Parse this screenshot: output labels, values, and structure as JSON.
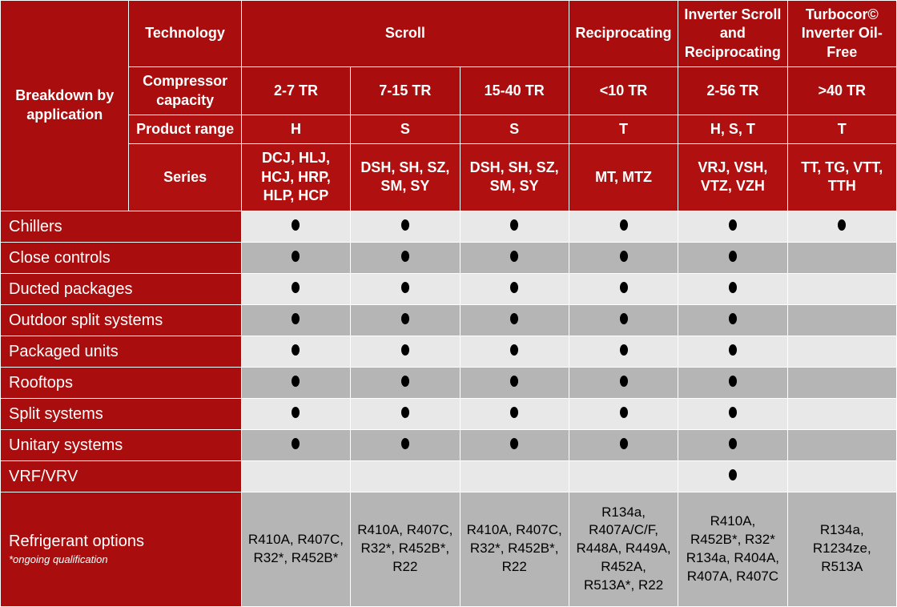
{
  "title_left": "Breakdown by application",
  "header": {
    "row1": {
      "label": "Technology",
      "cells": [
        "Scroll",
        "Reciprocating",
        "Inverter Scroll and Reciprocating",
        "Turbocor© Inverter Oil-Free"
      ]
    },
    "row2": {
      "label": "Compressor capacity",
      "cells": [
        "2-7 TR",
        "7-15 TR",
        "15-40 TR",
        "<10 TR",
        "2-56 TR",
        ">40 TR"
      ]
    },
    "row3": {
      "label": "Product range",
      "cells": [
        "H",
        "S",
        "S",
        "T",
        "H, S, T",
        "T"
      ]
    },
    "row4": {
      "label": "Series",
      "cells": [
        "DCJ, HLJ, HCJ, HRP, HLP, HCP",
        "DSH, SH, SZ, SM, SY",
        "DSH, SH, SZ, SM, SY",
        "MT, MTZ",
        "VRJ, VSH, VTZ, VZH",
        "TT, TG, VTT, TTH"
      ]
    }
  },
  "apps": [
    {
      "name": "Chillers",
      "marks": [
        true,
        true,
        true,
        true,
        true,
        true
      ]
    },
    {
      "name": "Close controls",
      "marks": [
        true,
        true,
        true,
        true,
        true,
        false
      ]
    },
    {
      "name": "Ducted packages",
      "marks": [
        true,
        true,
        true,
        true,
        true,
        false
      ]
    },
    {
      "name": "Outdoor split systems",
      "marks": [
        true,
        true,
        true,
        true,
        true,
        false
      ]
    },
    {
      "name": "Packaged units",
      "marks": [
        true,
        true,
        true,
        true,
        true,
        false
      ]
    },
    {
      "name": "Rooftops",
      "marks": [
        true,
        true,
        true,
        true,
        true,
        false
      ]
    },
    {
      "name": "Split systems",
      "marks": [
        true,
        true,
        true,
        true,
        true,
        false
      ]
    },
    {
      "name": "Unitary systems",
      "marks": [
        true,
        true,
        true,
        true,
        true,
        false
      ]
    },
    {
      "name": "VRF/VRV",
      "marks": [
        false,
        false,
        false,
        false,
        true,
        false
      ]
    }
  ],
  "refrigerant": {
    "label": "Refrigerant options",
    "footnote": "*ongoing qualification",
    "cells": [
      "R410A, R407C, R32*, R452B*",
      "R410A, R407C, R32*, R452B*, R22",
      "R410A, R407C, R32*, R452B*, R22",
      "R134a, R407A/C/F, R448A, R449A, R452A, R513A*, R22",
      "R410A, R452B*, R32* R134a, R404A, R407A, R407C",
      "R134a, R1234ze, R513A"
    ]
  },
  "style": {
    "header_bg": "#aa0d0d",
    "row_light": "#e8e8e8",
    "row_dark": "#b5b5b5",
    "text_white": "#ffffff",
    "text_black": "#000000"
  }
}
